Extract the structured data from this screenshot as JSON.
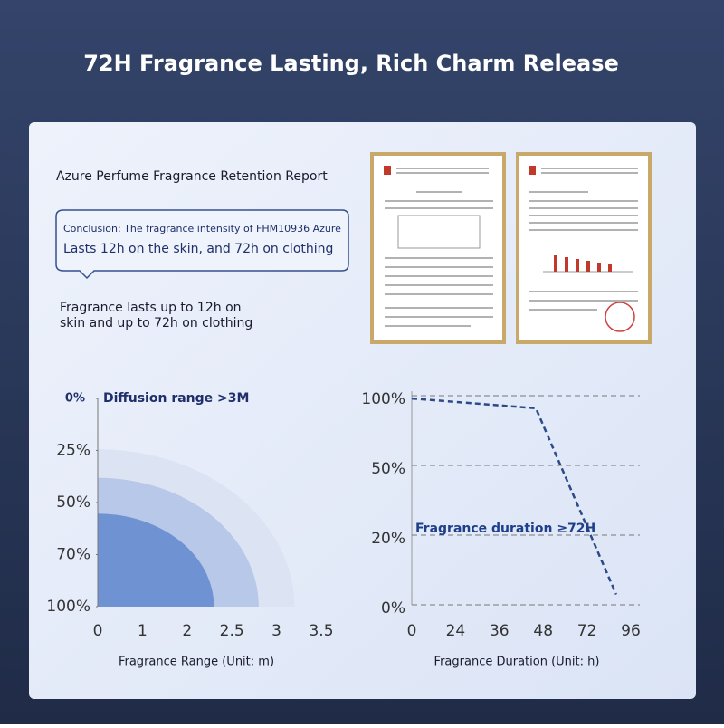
{
  "header": {
    "title": "72H Fragrance Lasting, Rich Charm Release"
  },
  "report": {
    "title": "Azure Perfume Fragrance Retention Report",
    "conclusion": [
      "Conclusion: The fragrance intensity of FHM10936 Azure",
      "Lasts 12h on the skin, and 72h on clothing"
    ],
    "summary": [
      "Fragrance lasts up to 12h on",
      "skin and up to 72h on clothing"
    ]
  },
  "chart_data": [
    {
      "type": "rings",
      "annotation": "Diffusion range >3M",
      "x_label": "Fragrance Range (Unit: m)",
      "xlim": [
        0,
        3.5
      ],
      "xticks": [
        0,
        1,
        2,
        2.5,
        3,
        3.5
      ],
      "ylim": [
        0,
        100
      ],
      "yticks": [
        {
          "value": 0,
          "label": "0%"
        },
        {
          "value": 25,
          "label": "25%"
        },
        {
          "value": 50,
          "label": "50%"
        },
        {
          "value": 70,
          "label": "70%"
        },
        {
          "value": 100,
          "label": "100%"
        }
      ],
      "values": [
        3.2,
        2.8,
        2.3
      ],
      "colors": [
        "#dce4f4",
        "#b7c8e9",
        "#6f93d2"
      ]
    },
    {
      "type": "line",
      "annotation": "Fragrance duration ≥72H",
      "x_label": "Fragrance Duration (Unit: h)",
      "xlim": [
        0,
        96
      ],
      "xticks": [
        0,
        24,
        36,
        48,
        72,
        96
      ],
      "ylim": [
        0,
        100
      ],
      "yticks": [
        {
          "value": 100,
          "label": "100%"
        },
        {
          "value": 50,
          "label": "50%"
        },
        {
          "value": 20,
          "label": "20%"
        },
        {
          "value": 0,
          "label": "0%"
        }
      ],
      "grid": true,
      "x": [
        0,
        46,
        88
      ],
      "values": [
        98,
        91,
        3
      ],
      "color": "#2c4a86"
    }
  ]
}
